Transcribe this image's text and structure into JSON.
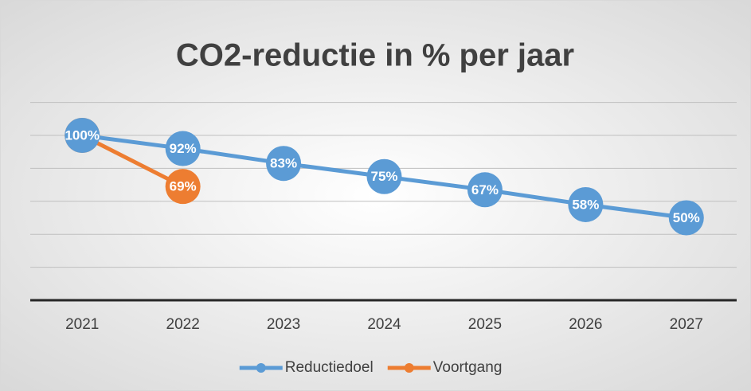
{
  "chart_data": {
    "type": "line",
    "title": "CO2-reductie in % per jaar",
    "categories": [
      "2021",
      "2022",
      "2023",
      "2024",
      "2025",
      "2026",
      "2027"
    ],
    "series": [
      {
        "name": "Reductiedoel",
        "color": "#5b9bd5",
        "values": [
          100,
          92,
          83,
          75,
          67,
          58,
          50
        ],
        "value_labels": [
          "100%",
          "92%",
          "83%",
          "75%",
          "67%",
          "58%",
          "50%"
        ]
      },
      {
        "name": "Voortgang",
        "color": "#ed7d31",
        "values": [
          100,
          69,
          null,
          null,
          null,
          null,
          null
        ],
        "value_labels": [
          "100%",
          "69%",
          null,
          null,
          null,
          null,
          null
        ]
      }
    ],
    "ylim": [
      0,
      120
    ],
    "yticks": [
      0,
      20,
      40,
      60,
      80,
      100,
      120
    ],
    "grid": true,
    "legend": "bottom"
  }
}
